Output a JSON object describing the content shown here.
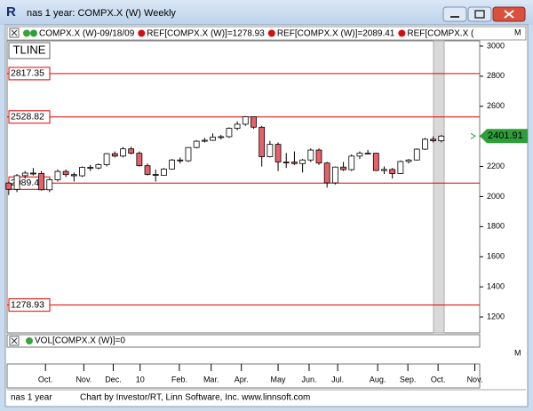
{
  "window": {
    "title": "nas 1 year: COMPX.X (W) Weekly",
    "icon": "R"
  },
  "legend": [
    "COMPX.X (W)-09/18/09",
    "REF[COMPX.X (W)]=1278.93",
    "REF[COMPX.X (W)]=2089.41",
    "REF[COMPX.X ("
  ],
  "panel_label": "TLINE",
  "volume_pane": "VOL[COMPX.X (W)]=0",
  "pane_marker": "M",
  "footer": {
    "left": "nas 1 year",
    "credit": "Chart by Investor/RT, Linn Software, Inc. www.linnsoft.com"
  },
  "chart_data": {
    "type": "candlestick",
    "up_color": "#ffffff",
    "down_color": "#e8606a",
    "reference_color": "#e00000",
    "last_color": "#2e9e3a",
    "ylim": [
      1094,
      3035
    ],
    "yticks": [
      1200,
      1400,
      1600,
      1800,
      2000,
      2200,
      2400,
      2600,
      2800,
      3000
    ],
    "xlim": [
      -0.2,
      57.7
    ],
    "xticks": [
      {
        "value": 4.5,
        "label": "Oct."
      },
      {
        "value": 9.2,
        "label": "Nov."
      },
      {
        "value": 12.8,
        "label": "Dec."
      },
      {
        "value": 16.1,
        "label": "10"
      },
      {
        "value": 20.9,
        "label": "Feb."
      },
      {
        "value": 24.8,
        "label": "Mar."
      },
      {
        "value": 28.5,
        "label": "Apr."
      },
      {
        "value": 33,
        "label": "May"
      },
      {
        "value": 36.8,
        "label": "Jun."
      },
      {
        "value": 40.3,
        "label": "Jul."
      },
      {
        "value": 45.2,
        "label": "Aug."
      },
      {
        "value": 48.9,
        "label": "Sep."
      },
      {
        "value": 52.6,
        "label": "Oct."
      },
      {
        "value": 57.1,
        "label": "Nov."
      }
    ],
    "reference_lines": [
      2817.35,
      2528.82,
      2089.41,
      1278.93
    ],
    "open": [
      2090,
      2048,
      2139,
      2156,
      2154,
      2045,
      2112,
      2167,
      2146,
      2138,
      2194,
      2190,
      2212,
      2285,
      2269,
      2317,
      2288,
      2205,
      2147,
      2141,
      2183,
      2243,
      2238,
      2326,
      2368,
      2374,
      2395,
      2398,
      2454,
      2481,
      2530,
      2461,
      2265,
      2347,
      2230,
      2229,
      2219,
      2243,
      2309,
      2223,
      2091,
      2196,
      2179,
      2269,
      2288,
      2288,
      2173,
      2180,
      2153,
      2233,
      2243,
      2315,
      2381,
      2371
    ],
    "high": [
      2100,
      2150,
      2170,
      2190,
      2170,
      2120,
      2180,
      2180,
      2160,
      2200,
      2210,
      2220,
      2290,
      2300,
      2330,
      2330,
      2300,
      2220,
      2180,
      2190,
      2250,
      2260,
      2330,
      2375,
      2390,
      2420,
      2410,
      2460,
      2500,
      2535,
      2520,
      2470,
      2370,
      2360,
      2290,
      2300,
      2250,
      2320,
      2320,
      2230,
      2200,
      2230,
      2280,
      2300,
      2310,
      2290,
      2200,
      2190,
      2240,
      2250,
      2320,
      2390,
      2400,
      2410
    ],
    "low": [
      2010,
      2030,
      2120,
      2140,
      2040,
      2030,
      2100,
      2130,
      2100,
      2130,
      2170,
      2180,
      2200,
      2260,
      2260,
      2280,
      2200,
      2140,
      2100,
      2140,
      2180,
      2220,
      2230,
      2320,
      2360,
      2370,
      2380,
      2390,
      2440,
      2470,
      2450,
      2200,
      2260,
      2170,
      2190,
      2210,
      2160,
      2230,
      2210,
      2060,
      2080,
      2170,
      2170,
      2250,
      2280,
      2170,
      2150,
      2120,
      2150,
      2220,
      2240,
      2310,
      2360,
      2360
    ],
    "close": [
      2048,
      2139,
      2156,
      2154,
      2045,
      2112,
      2167,
      2146,
      2138,
      2194,
      2190,
      2212,
      2285,
      2269,
      2317,
      2288,
      2205,
      2147,
      2141,
      2183,
      2243,
      2238,
      2326,
      2368,
      2374,
      2395,
      2398,
      2454,
      2481,
      2530,
      2461,
      2265,
      2347,
      2230,
      2229,
      2219,
      2243,
      2309,
      2223,
      2091,
      2196,
      2179,
      2269,
      2288,
      2288,
      2173,
      2180,
      2153,
      2233,
      2243,
      2315,
      2381,
      2371,
      2401.91
    ]
  }
}
